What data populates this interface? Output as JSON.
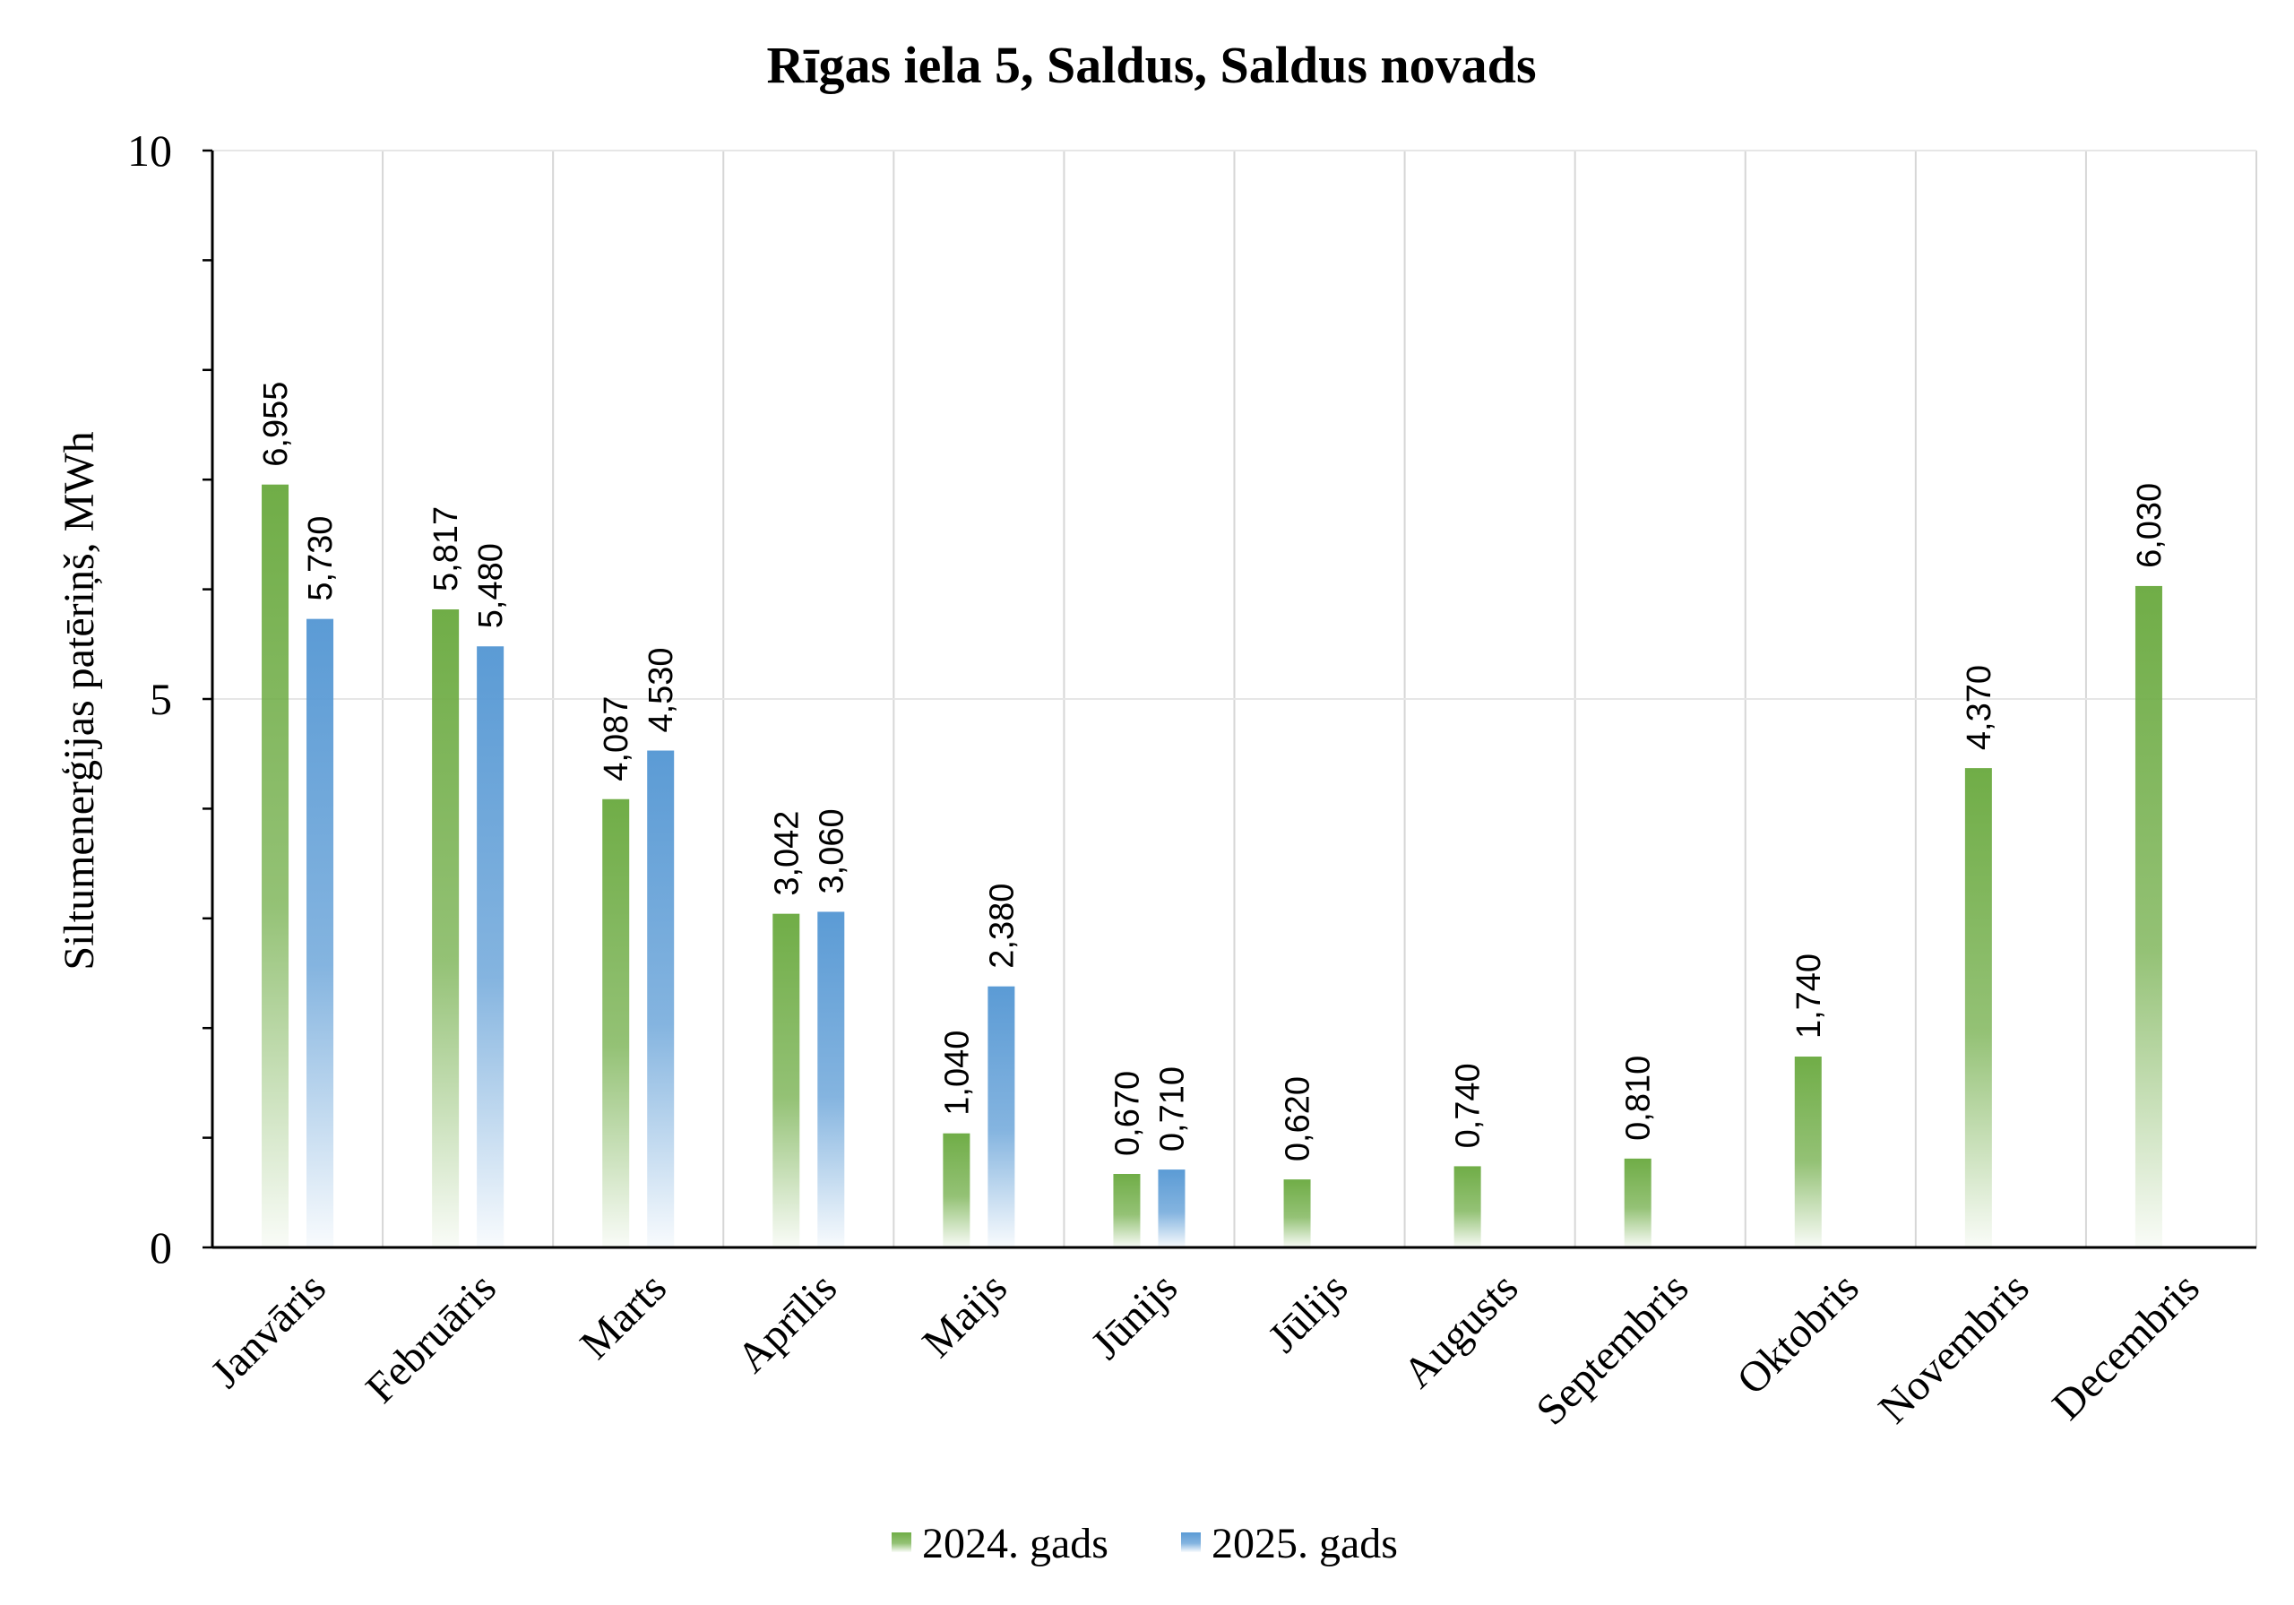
{
  "chart_data": {
    "type": "bar",
    "title": "Rīgas iela 5, Saldus, Saldus novads",
    "xlabel": "",
    "ylabel": "Siltumenerģijas patēriņš, MWh",
    "ylim": [
      0,
      10
    ],
    "yticks": [
      {
        "value": 0,
        "label": "0"
      },
      {
        "value": 5,
        "label": "5"
      },
      {
        "value": 10,
        "label": "10"
      }
    ],
    "categories": [
      "Janvāris",
      "Februāris",
      "Marts",
      "Aprīlis",
      "Maijs",
      "Jūnijs",
      "Jūlijs",
      "Augusts",
      "Septembris",
      "Oktobris",
      "Novembris",
      "Decembris"
    ],
    "series": [
      {
        "name": "2024. gads",
        "color": "#70ad47",
        "values": [
          6.955,
          5.817,
          4.087,
          3.042,
          1.04,
          0.67,
          0.62,
          0.74,
          0.81,
          1.74,
          4.37,
          6.03
        ],
        "labels": [
          "6,955",
          "5,817",
          "4,087",
          "3,042",
          "1,040",
          "0,670",
          "0,620",
          "0,740",
          "0,810",
          "1,740",
          "4,370",
          "6,030"
        ]
      },
      {
        "name": "2025. gads",
        "color": "#5b9bd5",
        "values": [
          5.73,
          5.48,
          4.53,
          3.06,
          2.38,
          0.71,
          null,
          null,
          null,
          null,
          null,
          null
        ],
        "labels": [
          "5,730",
          "5,480",
          "4,530",
          "3,060",
          "2,380",
          "0,710",
          null,
          null,
          null,
          null,
          null,
          null
        ]
      }
    ],
    "grid": {
      "vertical": true,
      "horizontal": true
    },
    "legend": "bottom-center"
  }
}
